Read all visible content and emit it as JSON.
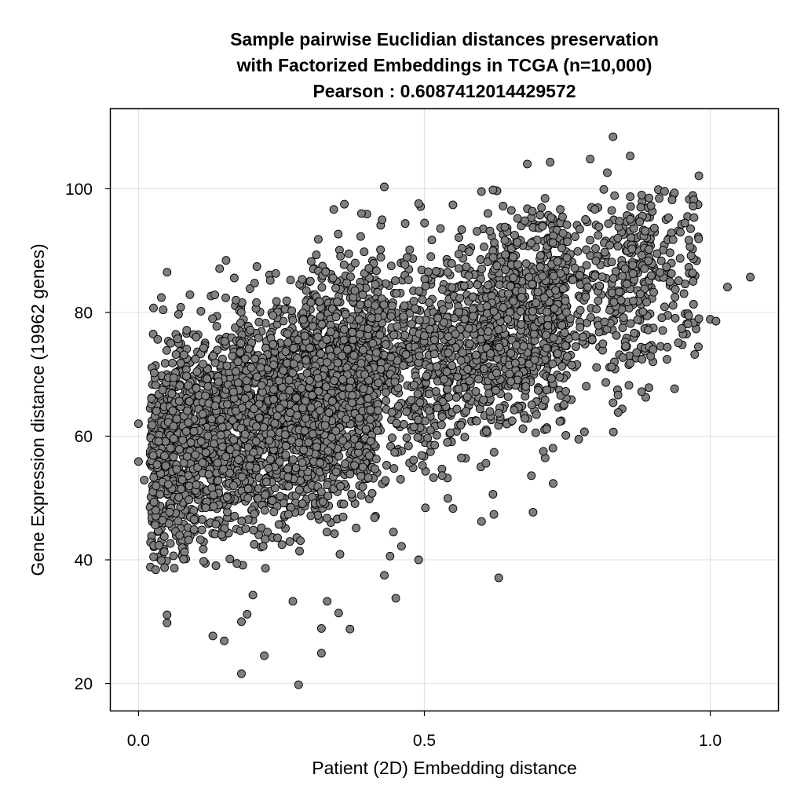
{
  "chart_data": {
    "type": "scatter",
    "title_lines": [
      "Sample pairwise Euclidian distances preservation",
      "with Factorized Embeddings in TCGA (n=10,000)",
      "Pearson : 0.6087412014429572"
    ],
    "xlabel": "Patient (2D) Embedding distance",
    "ylabel": "Gene Expression distance (19962 genes)",
    "xlim": [
      -0.05,
      1.12
    ],
    "ylim": [
      15.5,
      113
    ],
    "xticks": [
      0.0,
      0.5,
      1.0
    ],
    "xtick_labels": [
      "0.0",
      "0.5",
      "1.0"
    ],
    "yticks": [
      20,
      40,
      60,
      80,
      100
    ],
    "ytick_labels": [
      "20",
      "40",
      "60",
      "80",
      "100"
    ],
    "grid": true,
    "legend": "none",
    "point_color": "#7f7f7f",
    "point_edge_color": "#000000",
    "pearson_r": 0.6087412014429572,
    "n_points_shown": 4950,
    "trend": {
      "intercept": 55.5,
      "slope": 35,
      "residual_sd": 8.8
    },
    "notable_points": [
      {
        "x": 0.83,
        "y": 108.4
      },
      {
        "x": 0.86,
        "y": 105.3
      },
      {
        "x": 0.68,
        "y": 104.0
      },
      {
        "x": 0.72,
        "y": 104.3
      },
      {
        "x": 0.79,
        "y": 104.8
      },
      {
        "x": 0.82,
        "y": 102.6
      },
      {
        "x": 0.98,
        "y": 102.1
      },
      {
        "x": 0.43,
        "y": 100.3
      },
      {
        "x": 0.62,
        "y": 99.8
      },
      {
        "x": 0.92,
        "y": 99.6
      },
      {
        "x": 0.36,
        "y": 97.5
      },
      {
        "x": 0.49,
        "y": 97.6
      },
      {
        "x": 0.55,
        "y": 97.4
      },
      {
        "x": 0.39,
        "y": 96.0
      },
      {
        "x": 0.97,
        "y": 97.2
      },
      {
        "x": 1.07,
        "y": 85.7
      },
      {
        "x": 1.03,
        "y": 84.1
      },
      {
        "x": 1.0,
        "y": 78.9
      },
      {
        "x": 1.01,
        "y": 78.6
      },
      {
        "x": 0.98,
        "y": 79.0
      },
      {
        "x": 0.95,
        "y": 77.4
      },
      {
        "x": 0.92,
        "y": 80.9
      },
      {
        "x": 0.9,
        "y": 74.0
      },
      {
        "x": 0.86,
        "y": 71.8
      },
      {
        "x": 0.88,
        "y": 67.2
      },
      {
        "x": 0.83,
        "y": 65.4
      },
      {
        "x": 0.77,
        "y": 59.5
      },
      {
        "x": 0.78,
        "y": 60.7
      },
      {
        "x": 0.69,
        "y": 47.7
      },
      {
        "x": 0.63,
        "y": 37.1
      },
      {
        "x": 0.6,
        "y": 46.2
      },
      {
        "x": 0.62,
        "y": 50.6
      },
      {
        "x": 0.55,
        "y": 48.3
      },
      {
        "x": 0.49,
        "y": 40.0
      },
      {
        "x": 0.46,
        "y": 42.2
      },
      {
        "x": 0.44,
        "y": 40.6
      },
      {
        "x": 0.43,
        "y": 37.5
      },
      {
        "x": 0.45,
        "y": 33.8
      },
      {
        "x": 0.37,
        "y": 28.8
      },
      {
        "x": 0.32,
        "y": 28.9
      },
      {
        "x": 0.32,
        "y": 24.9
      },
      {
        "x": 0.22,
        "y": 24.5
      },
      {
        "x": 0.28,
        "y": 19.8
      },
      {
        "x": 0.18,
        "y": 21.6
      },
      {
        "x": 0.15,
        "y": 26.9
      },
      {
        "x": 0.13,
        "y": 27.7
      },
      {
        "x": 0.18,
        "y": 30.0
      },
      {
        "x": 0.19,
        "y": 31.2
      },
      {
        "x": 0.05,
        "y": 29.8
      },
      {
        "x": 0.05,
        "y": 31.1
      },
      {
        "x": 0.04,
        "y": 39.9
      },
      {
        "x": 0.03,
        "y": 38.4
      },
      {
        "x": 0.05,
        "y": 86.5
      },
      {
        "x": 0.04,
        "y": 82.4
      },
      {
        "x": 0.07,
        "y": 79.7
      },
      {
        "x": 0.24,
        "y": 86.3
      },
      {
        "x": 0.27,
        "y": 33.3
      },
      {
        "x": 0.33,
        "y": 33.3
      },
      {
        "x": 0.35,
        "y": 31.4
      },
      {
        "x": 0.2,
        "y": 34.3
      },
      {
        "x": 0.0,
        "y": 62.0
      },
      {
        "x": 0.0,
        "y": 55.9
      },
      {
        "x": 0.01,
        "y": 52.9
      }
    ]
  }
}
